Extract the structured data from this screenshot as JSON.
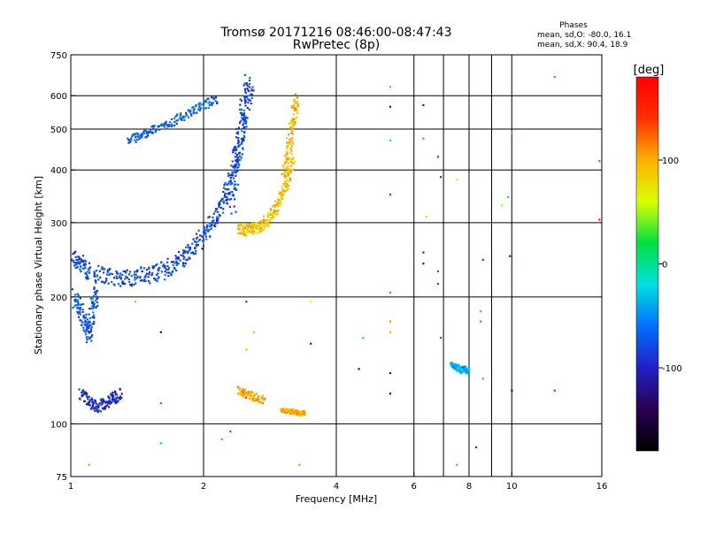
{
  "title": {
    "line1": "Tromsø 20171216 08:46:00-08:47:43",
    "line2": "RwPretec (8p)"
  },
  "phases_box": {
    "heading": "Phases",
    "line_o": "mean, sd,O: -80.0, 16.1",
    "line_x": "mean, sd,X:  90.4, 18.9"
  },
  "colorbar": {
    "unit_label": "[deg]",
    "ticks": [
      {
        "value": 100,
        "label": "100"
      },
      {
        "value": 0,
        "label": "0"
      },
      {
        "value": -100,
        "label": "-100"
      }
    ],
    "range": [
      -180,
      180
    ],
    "colors": [
      "#000000",
      "#2a0050",
      "#2020c8",
      "#0070ff",
      "#00e0e0",
      "#00e040",
      "#d8ff00",
      "#ffb000",
      "#ff3000",
      "#ff0000"
    ]
  },
  "chart_data": {
    "type": "scatter",
    "xlabel": "Frequency [MHz]",
    "ylabel": "Stationary phase Virtual Height [km]",
    "xscale": "log",
    "yscale": "log",
    "xlim": [
      1,
      16
    ],
    "ylim": [
      75,
      750
    ],
    "x_ticks": [
      1,
      2,
      4,
      6,
      8,
      10,
      16
    ],
    "y_ticks": [
      75,
      100,
      200,
      300,
      400,
      500,
      600,
      750
    ],
    "grid": true,
    "traces": [
      {
        "mode": "O",
        "phase_deg": -80,
        "x": [
          1.0,
          1.05,
          1.1,
          1.2,
          1.3,
          1.4,
          1.5,
          1.6,
          1.7,
          1.8,
          1.9,
          2.0,
          2.1,
          2.2,
          2.3,
          2.4,
          2.5
        ],
        "y": [
          250,
          240,
          230,
          225,
          222,
          223,
          226,
          230,
          238,
          248,
          262,
          280,
          300,
          330,
          380,
          450,
          560
        ],
        "spread": 0.06
      },
      {
        "mode": "O",
        "phase_deg": -80,
        "x": [
          2.3,
          2.35,
          2.4,
          2.45,
          2.5,
          2.55
        ],
        "y": [
          320,
          380,
          450,
          520,
          600,
          640
        ],
        "spread": 0.08
      },
      {
        "mode": "O",
        "phase_deg": -70,
        "x": [
          1.35,
          1.45,
          1.55,
          1.7,
          1.85,
          2.0,
          2.15
        ],
        "y": [
          470,
          485,
          500,
          520,
          545,
          570,
          590
        ],
        "spread": 0.03
      },
      {
        "mode": "O",
        "phase_deg": -75,
        "x": [
          1.02,
          1.05,
          1.08,
          1.1,
          1.12,
          1.15
        ],
        "y": [
          200,
          185,
          170,
          160,
          190,
          210
        ],
        "spread": 0.06
      },
      {
        "mode": "O",
        "phase_deg": -95,
        "x": [
          1.05,
          1.1,
          1.15,
          1.2,
          1.25,
          1.3
        ],
        "y": [
          118,
          112,
          110,
          112,
          115,
          118
        ],
        "spread": 0.04
      },
      {
        "mode": "X",
        "phase_deg": 90,
        "x": [
          2.4,
          2.5,
          2.6,
          2.7,
          2.8,
          2.9,
          3.0,
          3.1,
          3.2
        ],
        "y": [
          290,
          288,
          290,
          295,
          305,
          320,
          345,
          380,
          430
        ],
        "spread": 0.04
      },
      {
        "mode": "X",
        "phase_deg": 95,
        "x": [
          3.05,
          3.1,
          3.15,
          3.2,
          3.25
        ],
        "y": [
          380,
          430,
          480,
          540,
          600
        ],
        "spread": 0.05
      },
      {
        "mode": "X",
        "phase_deg": 100,
        "x": [
          3.0,
          3.1,
          3.2,
          3.3,
          3.4
        ],
        "y": [
          108,
          107,
          107,
          106,
          106
        ],
        "spread": 0.015
      },
      {
        "mode": "X",
        "phase_deg": 100,
        "x": [
          2.4,
          2.5,
          2.6,
          2.75
        ],
        "y": [
          120,
          118,
          116,
          114
        ],
        "spread": 0.03
      },
      {
        "mode": "O",
        "phase_deg": -40,
        "x": [
          7.3,
          7.5,
          7.6,
          7.7,
          7.8,
          8.0
        ],
        "y": [
          138,
          136,
          135,
          134,
          135,
          133
        ],
        "spread": 0.02
      }
    ],
    "scattered_points": [
      {
        "x": 5.3,
        "y": 630,
        "phase": 110
      },
      {
        "x": 5.3,
        "y": 565,
        "phase": -110
      },
      {
        "x": 6.3,
        "y": 570,
        "phase": -110
      },
      {
        "x": 5.3,
        "y": 470,
        "phase": -20
      },
      {
        "x": 6.3,
        "y": 475,
        "phase": -30
      },
      {
        "x": 6.8,
        "y": 430,
        "phase": 170
      },
      {
        "x": 6.9,
        "y": 385,
        "phase": -90
      },
      {
        "x": 7.5,
        "y": 380,
        "phase": 60
      },
      {
        "x": 5.3,
        "y": 350,
        "phase": 160
      },
      {
        "x": 6.4,
        "y": 310,
        "phase": 80
      },
      {
        "x": 9.8,
        "y": 345,
        "phase": -10
      },
      {
        "x": 9.5,
        "y": 330,
        "phase": 50
      },
      {
        "x": 15.8,
        "y": 420,
        "phase": 130
      },
      {
        "x": 15.8,
        "y": 305,
        "phase": 160
      },
      {
        "x": 12.5,
        "y": 665,
        "phase": -40
      },
      {
        "x": 10.0,
        "y": 490,
        "phase": -20
      },
      {
        "x": 6.3,
        "y": 255,
        "phase": -100
      },
      {
        "x": 6.3,
        "y": 240,
        "phase": -110
      },
      {
        "x": 6.8,
        "y": 230,
        "phase": -60
      },
      {
        "x": 6.8,
        "y": 215,
        "phase": 170
      },
      {
        "x": 8.6,
        "y": 245,
        "phase": -80
      },
      {
        "x": 9.9,
        "y": 250,
        "phase": -110
      },
      {
        "x": 5.3,
        "y": 205,
        "phase": -40
      },
      {
        "x": 5.3,
        "y": 175,
        "phase": 110
      },
      {
        "x": 5.3,
        "y": 165,
        "phase": 100
      },
      {
        "x": 4.6,
        "y": 160,
        "phase": -20
      },
      {
        "x": 3.5,
        "y": 155,
        "phase": -110
      },
      {
        "x": 4.5,
        "y": 135,
        "phase": -130
      },
      {
        "x": 5.3,
        "y": 132,
        "phase": -120
      },
      {
        "x": 5.3,
        "y": 118,
        "phase": -130
      },
      {
        "x": 6.9,
        "y": 160,
        "phase": -60
      },
      {
        "x": 8.5,
        "y": 185,
        "phase": 110
      },
      {
        "x": 8.5,
        "y": 175,
        "phase": 130
      },
      {
        "x": 8.6,
        "y": 128,
        "phase": 120
      },
      {
        "x": 10.0,
        "y": 120,
        "phase": -130
      },
      {
        "x": 12.5,
        "y": 120,
        "phase": 170
      },
      {
        "x": 8.3,
        "y": 88,
        "phase": -90
      },
      {
        "x": 7.5,
        "y": 80,
        "phase": 110
      },
      {
        "x": 1.1,
        "y": 80,
        "phase": 110
      },
      {
        "x": 1.6,
        "y": 90,
        "phase": -30
      },
      {
        "x": 2.2,
        "y": 92,
        "phase": 120
      },
      {
        "x": 2.3,
        "y": 96,
        "phase": 140
      },
      {
        "x": 3.3,
        "y": 80,
        "phase": 110
      },
      {
        "x": 1.6,
        "y": 112,
        "phase": -50
      },
      {
        "x": 1.6,
        "y": 165,
        "phase": -130
      },
      {
        "x": 1.4,
        "y": 195,
        "phase": 40
      },
      {
        "x": 2.5,
        "y": 195,
        "phase": -80
      },
      {
        "x": 3.5,
        "y": 195,
        "phase": 60
      },
      {
        "x": 2.6,
        "y": 165,
        "phase": 100
      },
      {
        "x": 2.5,
        "y": 150,
        "phase": 90
      }
    ]
  }
}
